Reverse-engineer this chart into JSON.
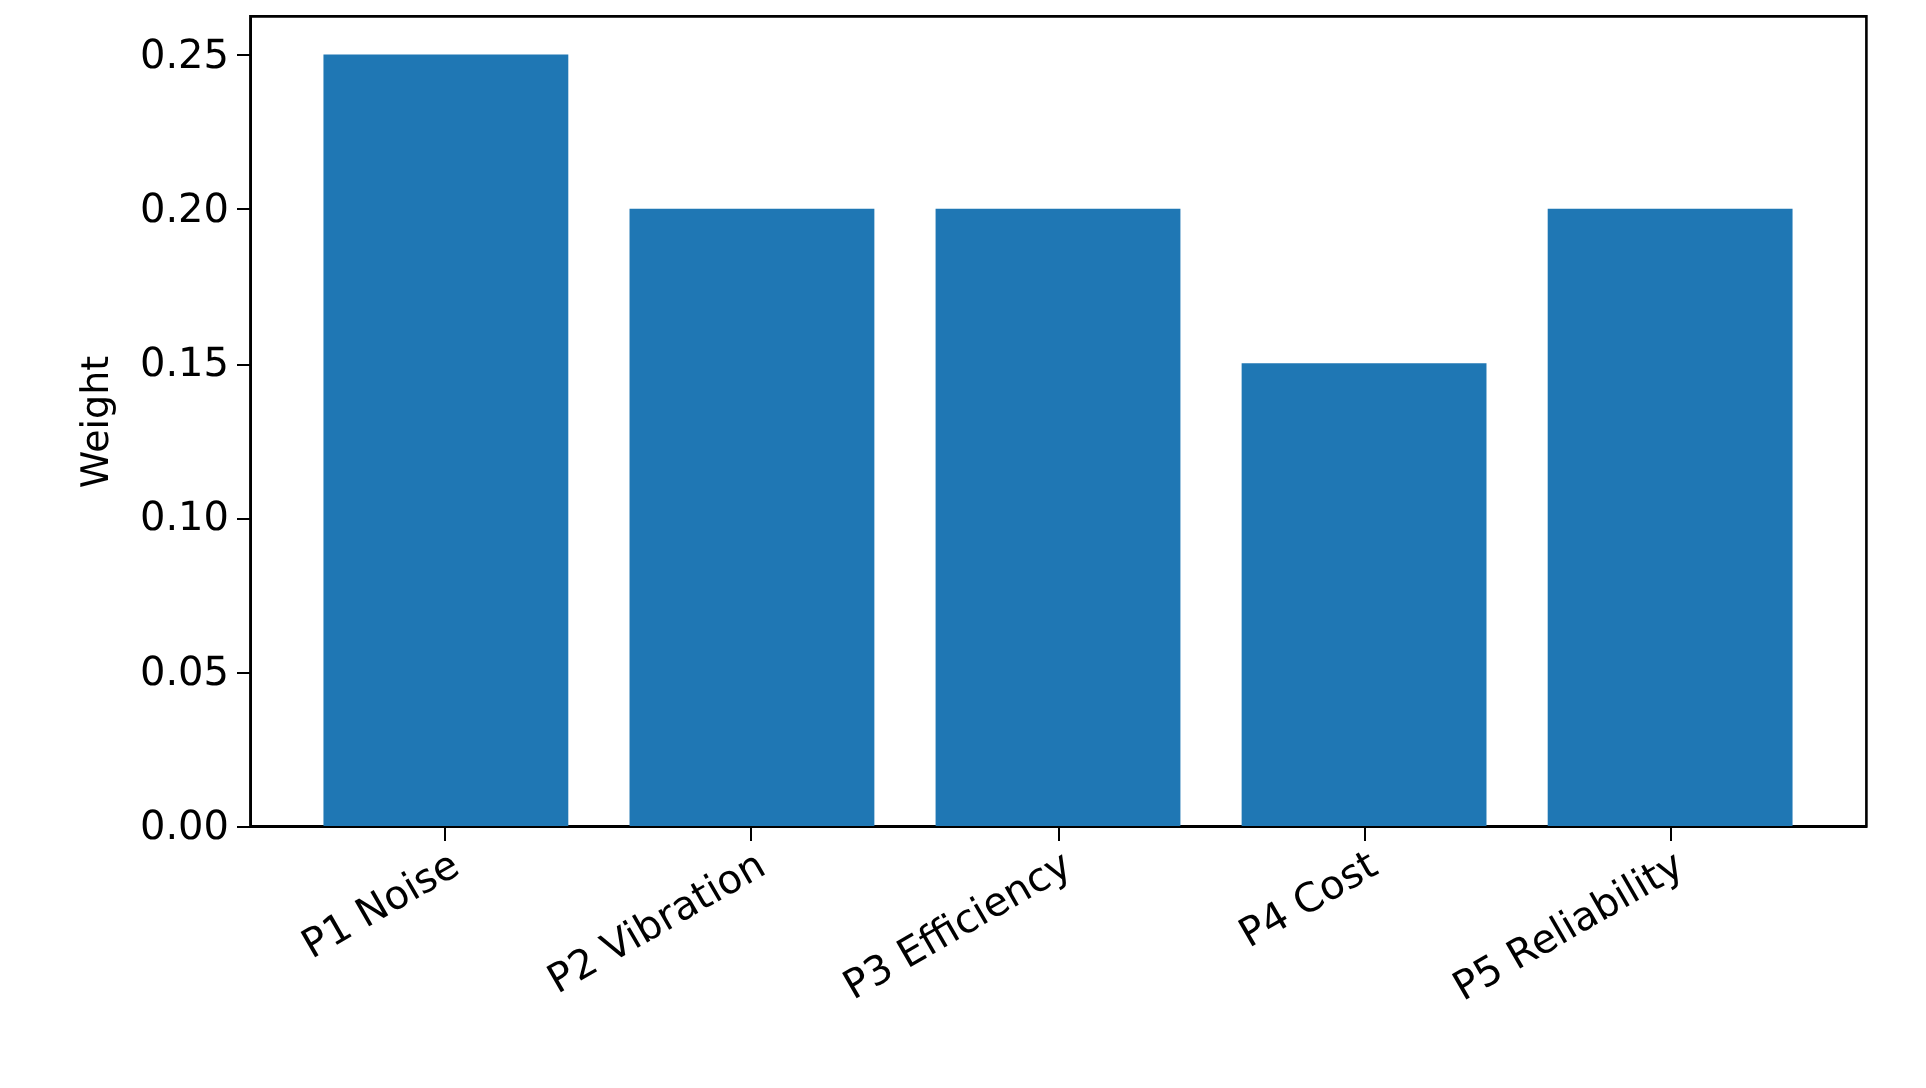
{
  "chart_data": {
    "type": "bar",
    "ylabel": "Weight",
    "categories": [
      "P1 Noise",
      "P2 Vibration",
      "P3 Efficiency",
      "P4 Cost",
      "P5 Reliability"
    ],
    "values": [
      0.25,
      0.2,
      0.2,
      0.15,
      0.2
    ],
    "color": "#1f77b4",
    "ylim": [
      0,
      0.2625
    ],
    "yticks": [
      {
        "value": 0,
        "label": "0.00"
      },
      0.05,
      {
        "value": 0.1,
        "label": "0.10"
      },
      0.15,
      {
        "value": 0.2,
        "label": "0.20"
      },
      0.25
    ],
    "grid": false
  }
}
